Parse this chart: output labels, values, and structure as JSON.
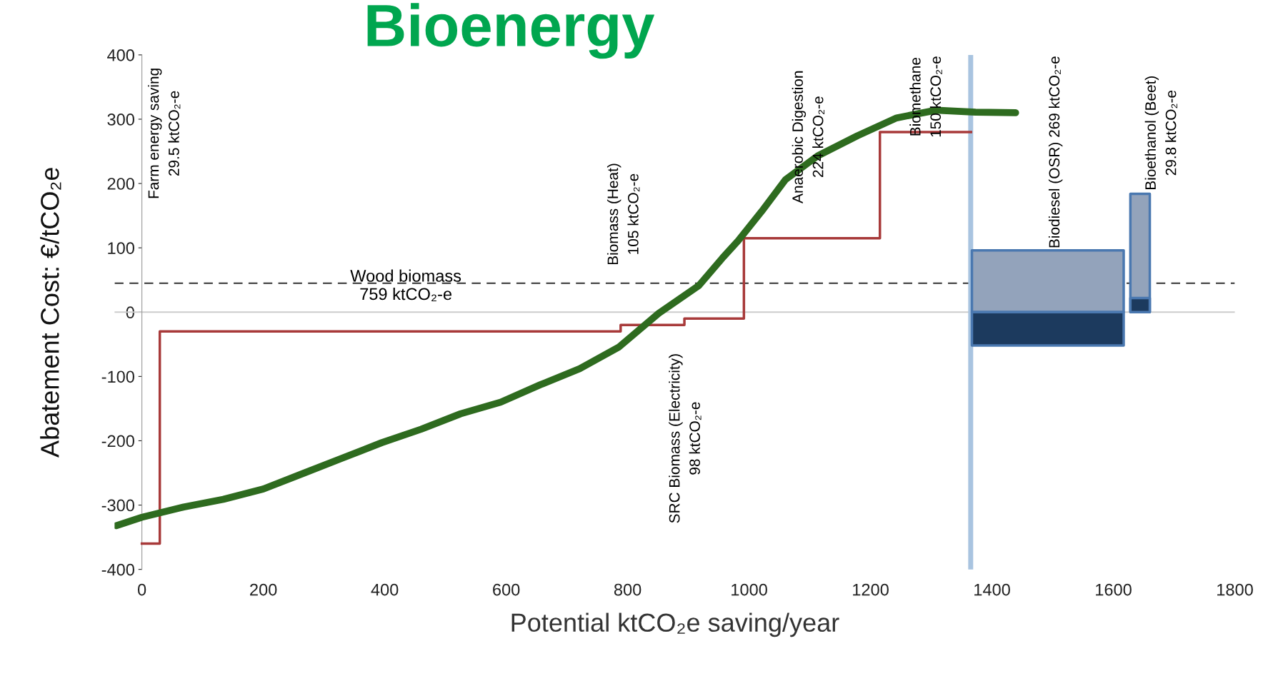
{
  "chart_data": {
    "type": "line",
    "title": "Bioenergy",
    "xlabel": "Potential ktCO₂e saving/year",
    "ylabel": "Abatement Cost: €/tCO₂e",
    "xlim": [
      -45,
      1800
    ],
    "xticks": [
      0,
      200,
      400,
      600,
      800,
      1000,
      1200,
      1400,
      1600,
      1800
    ],
    "ylim": [
      -400,
      400
    ],
    "yticks": [
      -400,
      -300,
      -200,
      -100,
      0,
      100,
      200,
      300,
      400
    ],
    "grid": false,
    "legend": false,
    "series": [
      {
        "type": "step",
        "color": "#a83a3a",
        "x": [
          0,
          29.5,
          788.5,
          893.5,
          991.5,
          1215.5,
          1365.5
        ],
        "values": [
          -360,
          -30,
          -20,
          -10,
          115,
          280,
          280
        ]
      },
      {
        "type": "area",
        "color": "#93a3bb",
        "x": [
          1367,
          1617
        ],
        "values": [
          96,
          96
        ]
      },
      {
        "type": "area",
        "color": "#1c3a5e",
        "x": [
          1367,
          1617
        ],
        "values": [
          -52,
          -52
        ]
      },
      {
        "type": "area",
        "color": "#93a3bb",
        "x": [
          1628,
          1660
        ],
        "values": [
          184,
          184
        ]
      },
      {
        "type": "area",
        "color": "#1c3a5e",
        "x": [
          1628,
          1660
        ],
        "values": [
          22,
          22
        ]
      },
      {
        "color": "#2e6b1f",
        "x": [
          -42,
          0,
          69,
          134,
          200,
          265,
          330,
          395,
          460,
          525,
          591,
          656,
          721,
          786,
          851,
          917,
          956,
          982,
          1021,
          1060,
          1113,
          1178,
          1243,
          1308,
          1373,
          1439
        ],
        "values": [
          -332,
          -319,
          -303,
          -291,
          -275,
          -251,
          -227,
          -203,
          -182,
          -158,
          -140,
          -113,
          -88,
          -54,
          -2,
          41,
          84,
          111,
          157,
          206,
          243,
          274,
          302,
          314,
          311,
          310
        ]
      }
    ],
    "ref_lines": [
      {
        "axis": "y",
        "value": 0,
        "color": "#cccccc",
        "line_style": "solid"
      },
      {
        "axis": "y",
        "value": 45,
        "color": "#333333",
        "line_style": "dashed"
      },
      {
        "axis": "x",
        "value": 1365,
        "color": "#a9c4e0",
        "line_style": "solid"
      }
    ],
    "annotations": [
      "Farm energy saving\n29.5 ktCO₂-e",
      "Wood biomass\n759 ktCO₂-e",
      "Biomass (Heat)\n105 ktCO₂-e",
      "SRC Biomass (Electricity)\n98 ktCO₂-e",
      "Anaerobic Digestion\n224 ktCO₂-e",
      "Biomethane\n150 ktCO₂-e",
      "Biodiesel (OSR) 269 ktCO₂-e",
      "Bioethanol (Beet)\n29.8 ktCO₂-e"
    ]
  }
}
